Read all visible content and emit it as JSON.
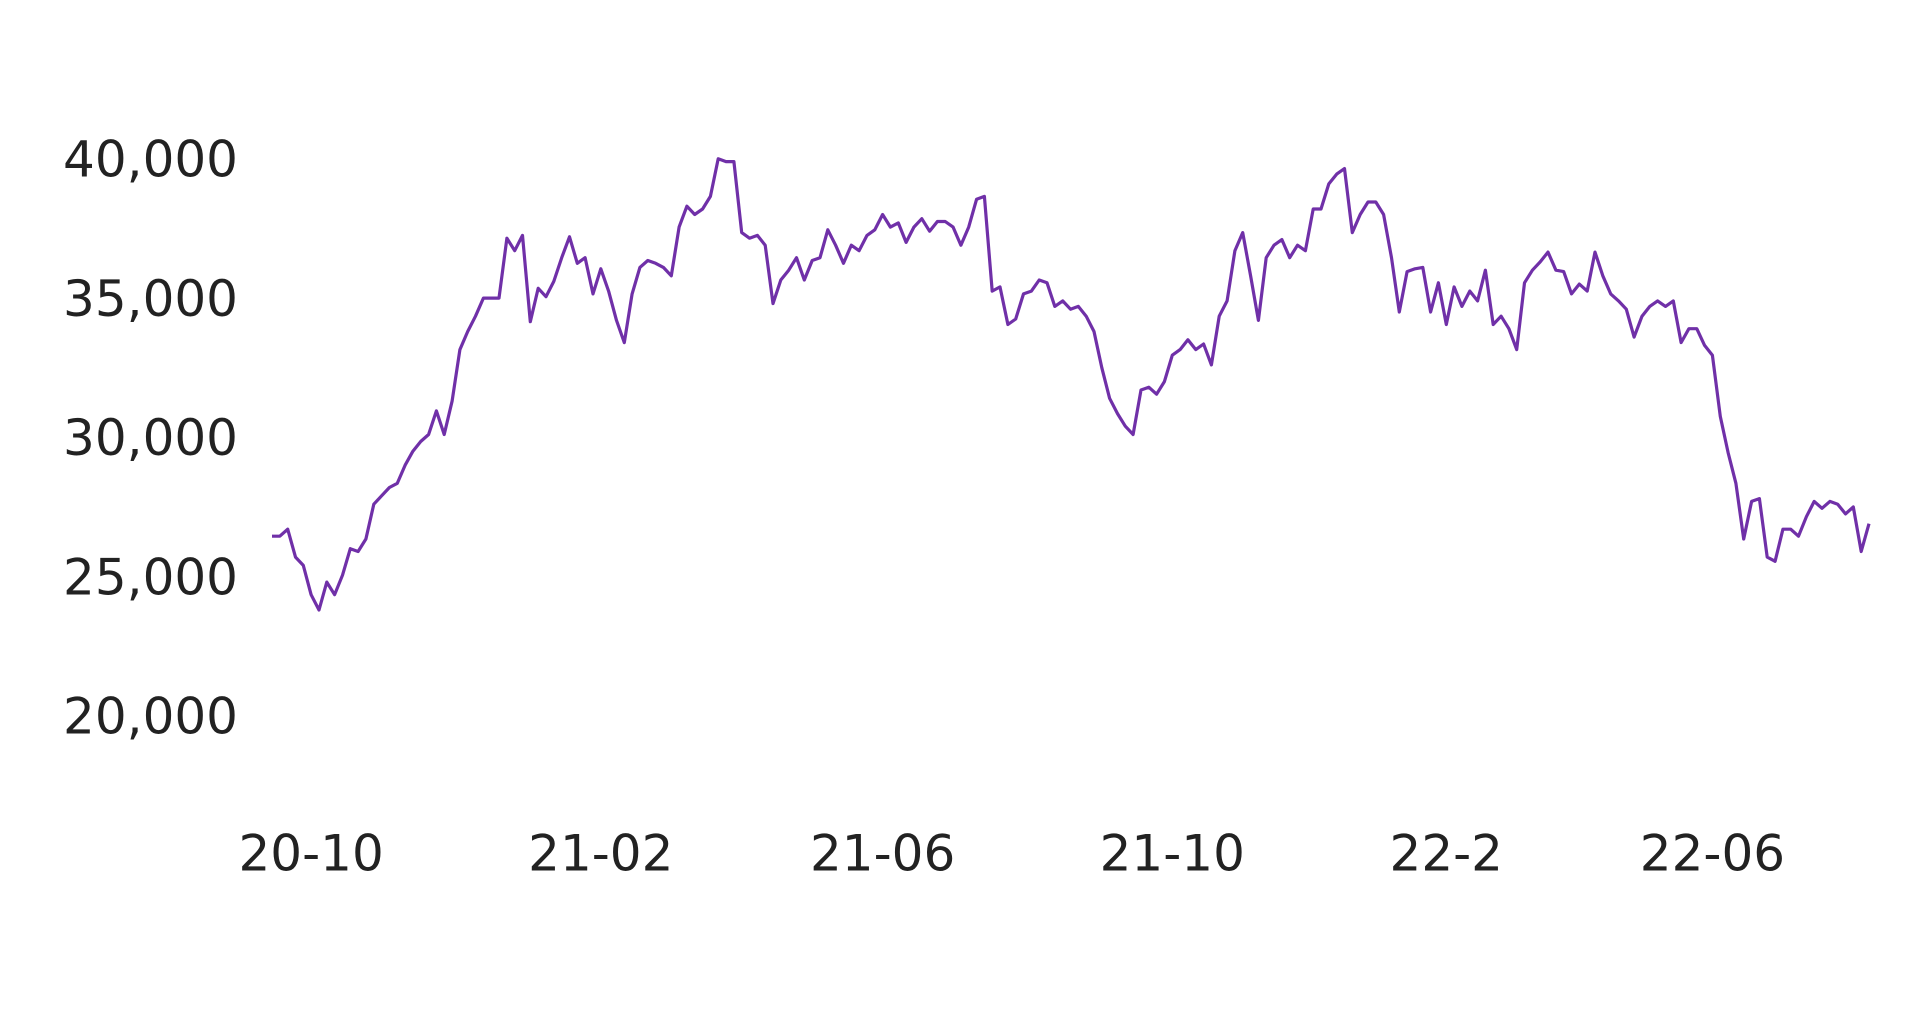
{
  "chart_data": {
    "type": "line",
    "color": "#7030a8",
    "values": [
      26600,
      26600,
      26850,
      25850,
      25550,
      24500,
      23950,
      24950,
      24500,
      25200,
      26150,
      26050,
      26500,
      27750,
      28050,
      28350,
      28500,
      29150,
      29650,
      30000,
      30250,
      31100,
      30250,
      31450,
      33300,
      33950,
      34500,
      35150,
      35150,
      35150,
      37300,
      36850,
      37400,
      34300,
      35500,
      35200,
      35750,
      36600,
      37350,
      36400,
      36600,
      35300,
      36200,
      35400,
      34350,
      33550,
      35300,
      36250,
      36500,
      36400,
      36250,
      35950,
      37700,
      38450,
      38150,
      38350,
      38800,
      40150,
      40050,
      40050,
      37500,
      37300,
      37400,
      37050,
      34950,
      35800,
      36150,
      36600,
      35800,
      36500,
      36600,
      37600,
      37050,
      36400,
      37050,
      36850,
      37400,
      37600,
      38150,
      37700,
      37850,
      37150,
      37700,
      38000,
      37550,
      37900,
      37900,
      37700,
      37050,
      37700,
      38700,
      38800,
      35400,
      35550,
      34200,
      34400,
      35300,
      35400,
      35800,
      35700,
      34850,
      35050,
      34750,
      34850,
      34500,
      33950,
      32650,
      31550,
      31000,
      30550,
      30250,
      31850,
      31950,
      31700,
      32150,
      33100,
      33300,
      33650,
      33300,
      33500,
      32750,
      34500,
      35050,
      36850,
      37500,
      35950,
      34350,
      36600,
      37050,
      37250,
      36600,
      37050,
      36850,
      38350,
      38350,
      39250,
      39600,
      39800,
      37500,
      38150,
      38600,
      38600,
      38150,
      36600,
      34650,
      36100,
      36200,
      36250,
      34650,
      35700,
      34200,
      35550,
      34850,
      35400,
      35050,
      36150,
      34200,
      34500,
      34050,
      33300,
      35700,
      36150,
      36450,
      36800,
      36150,
      36100,
      35300,
      35650,
      35400,
      36800,
      35950,
      35300,
      35050,
      34750,
      33750,
      34500,
      34850,
      35050,
      34850,
      35050,
      33550,
      34050,
      34050,
      33450,
      33100,
      30900,
      29600,
      28500,
      26500,
      27850,
      27950,
      25850,
      25700,
      26850,
      26850,
      26600,
      27300,
      27850,
      27600,
      27850,
      27750,
      27400,
      27650,
      26050,
      27050
    ],
    "xlim": [
      0,
      204
    ],
    "xticks": [
      {
        "value": 5,
        "label": "20-10"
      },
      {
        "value": 42,
        "label": "21-02"
      },
      {
        "value": 78,
        "label": "21-06"
      },
      {
        "value": 115,
        "label": "21-10"
      },
      {
        "value": 150,
        "label": "22-2"
      },
      {
        "value": 184,
        "label": "22-06"
      }
    ],
    "ylim": [
      20000,
      40000
    ],
    "yticks": [
      {
        "value": 20000,
        "label": "20,000"
      },
      {
        "value": 25000,
        "label": "25,000"
      },
      {
        "value": 30000,
        "label": "30,000"
      },
      {
        "value": 35000,
        "label": "35,000"
      },
      {
        "value": 40000,
        "label": "40,000"
      }
    ],
    "grid": false
  }
}
